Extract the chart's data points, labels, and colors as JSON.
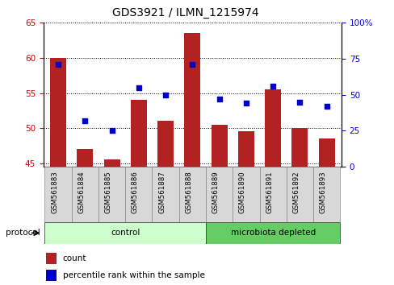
{
  "title": "GDS3921 / ILMN_1215974",
  "samples": [
    "GSM561883",
    "GSM561884",
    "GSM561885",
    "GSM561886",
    "GSM561887",
    "GSM561888",
    "GSM561889",
    "GSM561890",
    "GSM561891",
    "GSM561892",
    "GSM561893"
  ],
  "count_values": [
    60.0,
    47.0,
    45.5,
    54.0,
    51.0,
    63.5,
    50.5,
    49.5,
    55.5,
    50.0,
    48.5
  ],
  "percentile_values": [
    71,
    32,
    25,
    55,
    50,
    71,
    47,
    44,
    56,
    45,
    42
  ],
  "ylim_left": [
    44.5,
    65
  ],
  "ylim_right": [
    0,
    100
  ],
  "yticks_left": [
    45,
    50,
    55,
    60,
    65
  ],
  "yticks_right": [
    0,
    25,
    50,
    75,
    100
  ],
  "bar_color": "#b22222",
  "dot_color": "#0000cc",
  "bar_width": 0.6,
  "groups": [
    {
      "label": "control",
      "indices": [
        0,
        1,
        2,
        3,
        4,
        5
      ],
      "color": "#ccffcc"
    },
    {
      "label": "microbiota depleted",
      "indices": [
        6,
        7,
        8,
        9,
        10
      ],
      "color": "#66cc66"
    }
  ],
  "protocol_label": "protocol",
  "legend_count_label": "count",
  "legend_percentile_label": "percentile rank within the sample",
  "background_color": "#ffffff",
  "plot_background": "#ffffff",
  "tick_label_color_left": "#cc0000",
  "tick_label_color_right": "#0000cc",
  "sample_box_color": "#d8d8d8"
}
